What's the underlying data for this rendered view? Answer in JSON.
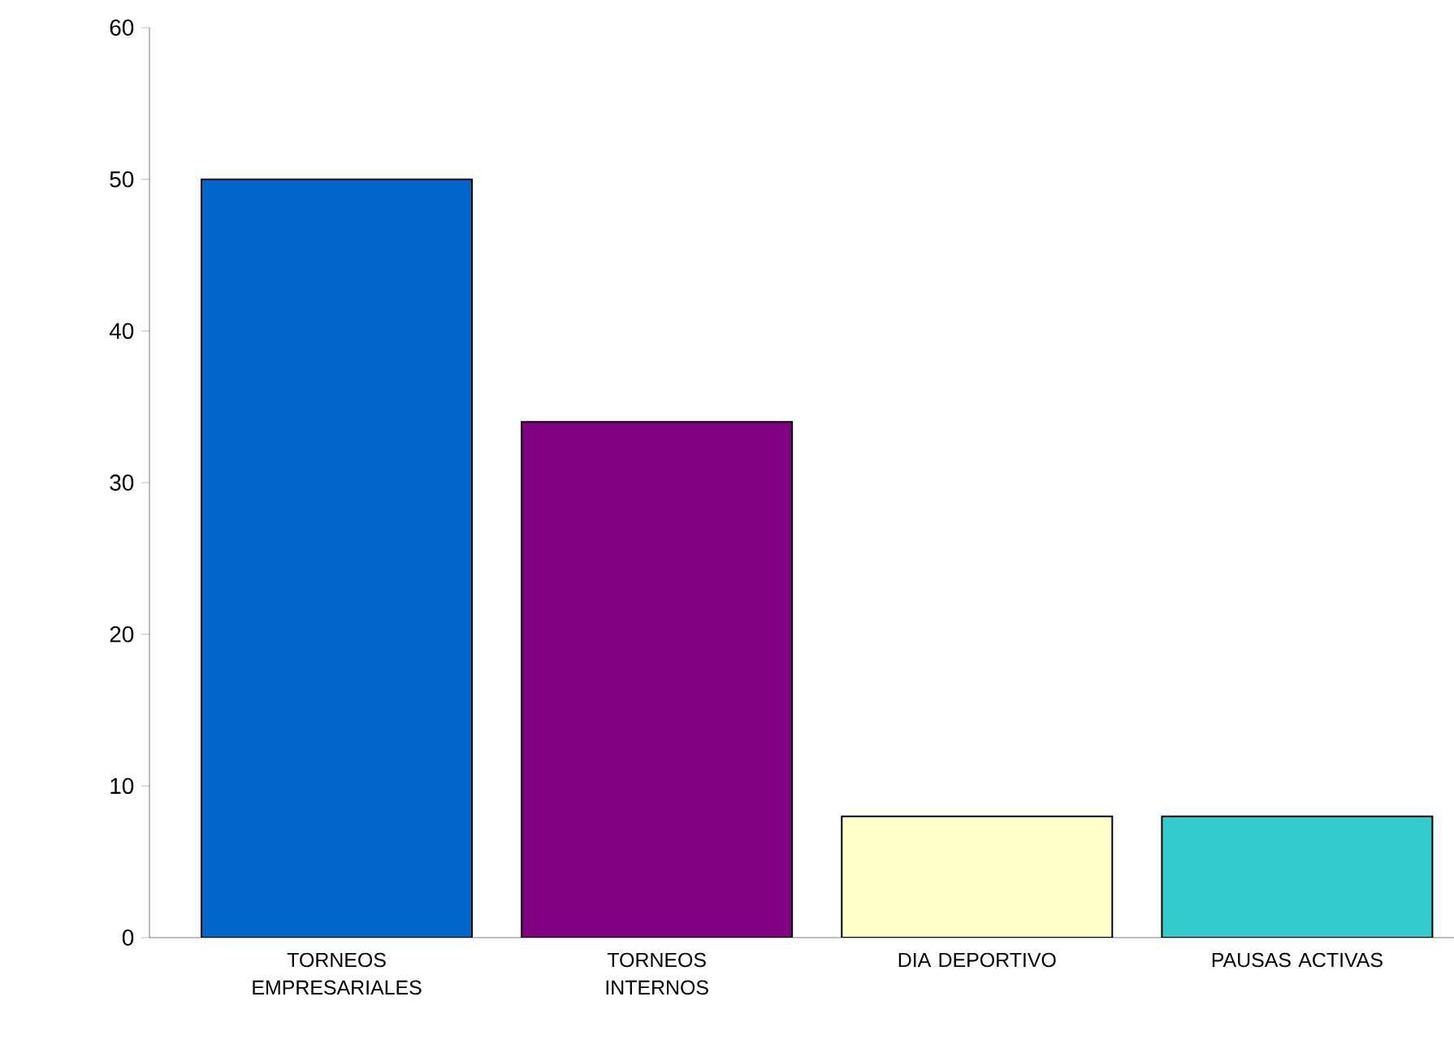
{
  "chart_data": {
    "type": "bar",
    "categories": [
      "TORNEOS EMPRESARIALES",
      "TORNEOS INTERNOS",
      "DIA DEPORTIVO",
      "PAUSAS ACTIVAS"
    ],
    "values": [
      50,
      34,
      8,
      8
    ],
    "colors": [
      "#0066cc",
      "#800080",
      "#ffffcc",
      "#33cccc"
    ],
    "ylim": [
      0,
      60
    ],
    "yticks": [
      0,
      10,
      20,
      30,
      40,
      50,
      60
    ]
  }
}
